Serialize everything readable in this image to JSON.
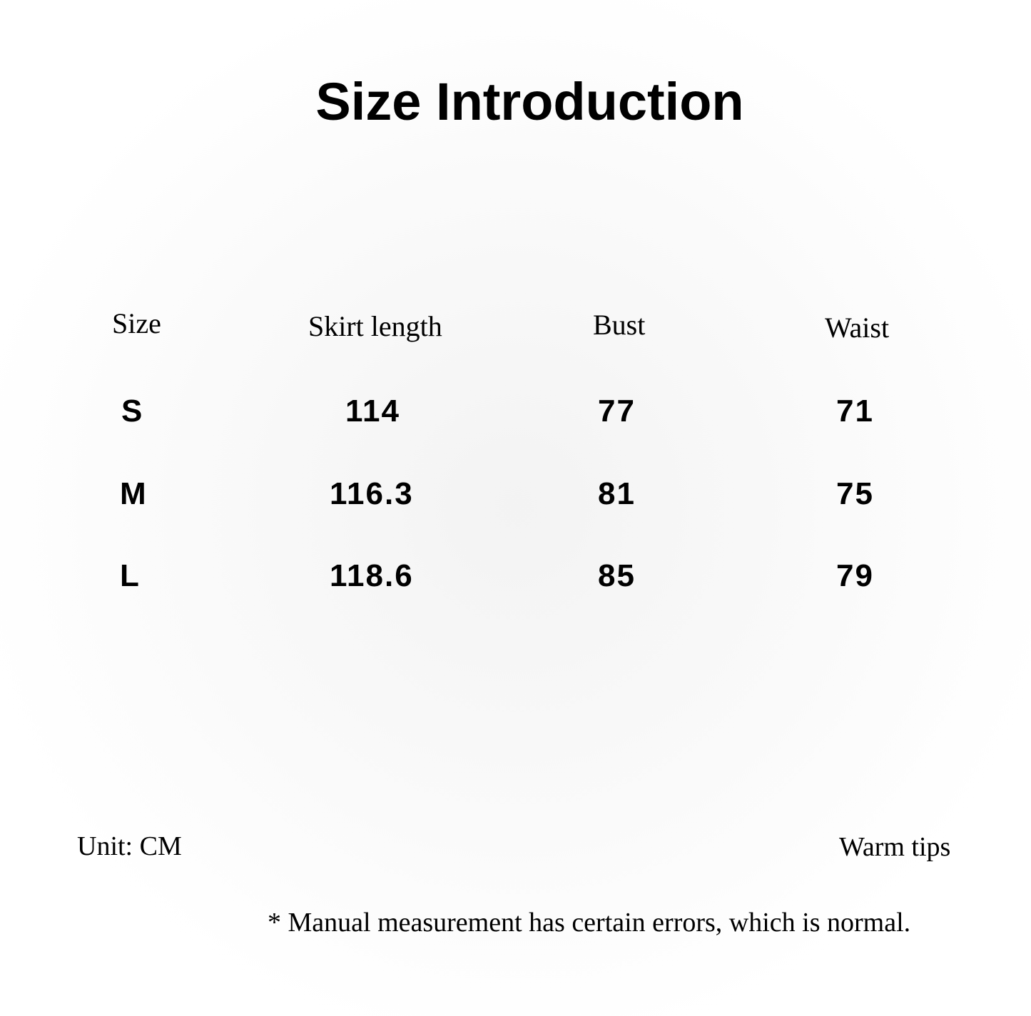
{
  "title": "Size Introduction",
  "table": {
    "headers": [
      "Size",
      "Skirt length",
      "Bust",
      "Waist"
    ],
    "rows": [
      [
        "S",
        "114",
        "77",
        "71"
      ],
      [
        "M",
        "116.3",
        "81",
        "75"
      ],
      [
        "L",
        "118.6",
        "85",
        "79"
      ]
    ]
  },
  "unit": "Unit: CM",
  "tips_label": "Warm tips",
  "tips_text": "* Manual measurement has certain errors, which is normal."
}
